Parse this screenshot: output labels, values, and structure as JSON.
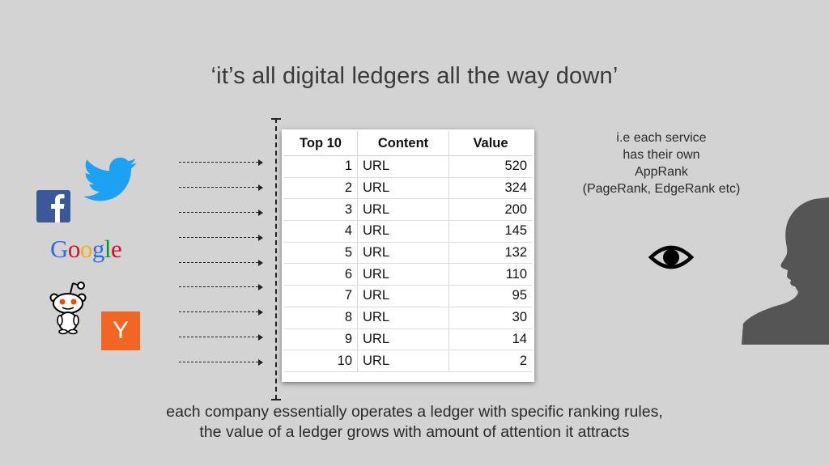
{
  "slide": {
    "title": "‘it’s all digital ledgers all the way down’",
    "note_lines": [
      "i.e each service",
      "has their own",
      "AppRank",
      "(PageRank, EdgeRank etc)"
    ],
    "caption_lines": [
      "each company essentially operates a ledger with specific ranking rules,",
      "the value of a ledger grows with amount of attention it attracts"
    ]
  },
  "ledger": {
    "headers": [
      "Top 10",
      "Content",
      "Value"
    ],
    "rows": [
      {
        "rank": "1",
        "content": "URL",
        "value": "520"
      },
      {
        "rank": "2",
        "content": "URL",
        "value": "324"
      },
      {
        "rank": "3",
        "content": "URL",
        "value": "200"
      },
      {
        "rank": "4",
        "content": "URL",
        "value": "145"
      },
      {
        "rank": "5",
        "content": "URL",
        "value": "132"
      },
      {
        "rank": "6",
        "content": "URL",
        "value": "110"
      },
      {
        "rank": "7",
        "content": "URL",
        "value": "95"
      },
      {
        "rank": "8",
        "content": "URL",
        "value": "30"
      },
      {
        "rank": "9",
        "content": "URL",
        "value": "14"
      },
      {
        "rank": "10",
        "content": "URL",
        "value": "2"
      }
    ]
  },
  "logos": {
    "google_text": "Google",
    "hn_text": "Y",
    "icons": [
      "twitter-icon",
      "facebook-icon",
      "google-logo",
      "reddit-icon",
      "hacker-news-icon",
      "eye-icon",
      "person-silhouette-icon"
    ]
  },
  "colors": {
    "background": "#d3d3d3",
    "twitter": "#1da1f2",
    "facebook": "#3b5998",
    "hacker_news": "#f26522",
    "reddit": "#ff4500",
    "silhouette": "#555555"
  }
}
